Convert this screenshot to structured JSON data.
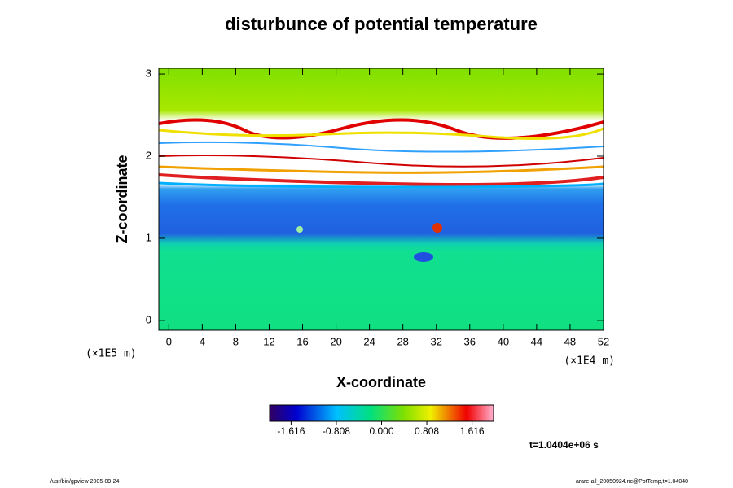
{
  "chart_data": {
    "type": "heatmap",
    "title": "disturbunce of potential temperature",
    "xlabel": "X-coordinate",
    "ylabel": "Z-coordinate",
    "xunit": "(×1E4 m)",
    "yunit": "(×1E5 m)",
    "xlim": [
      -1.2,
      52
    ],
    "xticks": [
      0,
      4,
      8,
      12,
      16,
      20,
      24,
      28,
      32,
      36,
      40,
      44,
      48,
      52
    ],
    "ylim": [
      -0.12,
      3.07
    ],
    "yticks": [
      0,
      1,
      2,
      3
    ],
    "clim": [
      -2,
      2
    ],
    "cticks": [
      -1.616,
      -0.808,
      {
        "value": 0,
        "label": "0.000"
      },
      0.808,
      1.616
    ],
    "annotation": "t=1.0404e+06 s",
    "footer_left": "/usr/bin/gpview 2005-09-24",
    "footer_right": "arare-all_20050924.nc@PotTemp,t=1.04040"
  }
}
